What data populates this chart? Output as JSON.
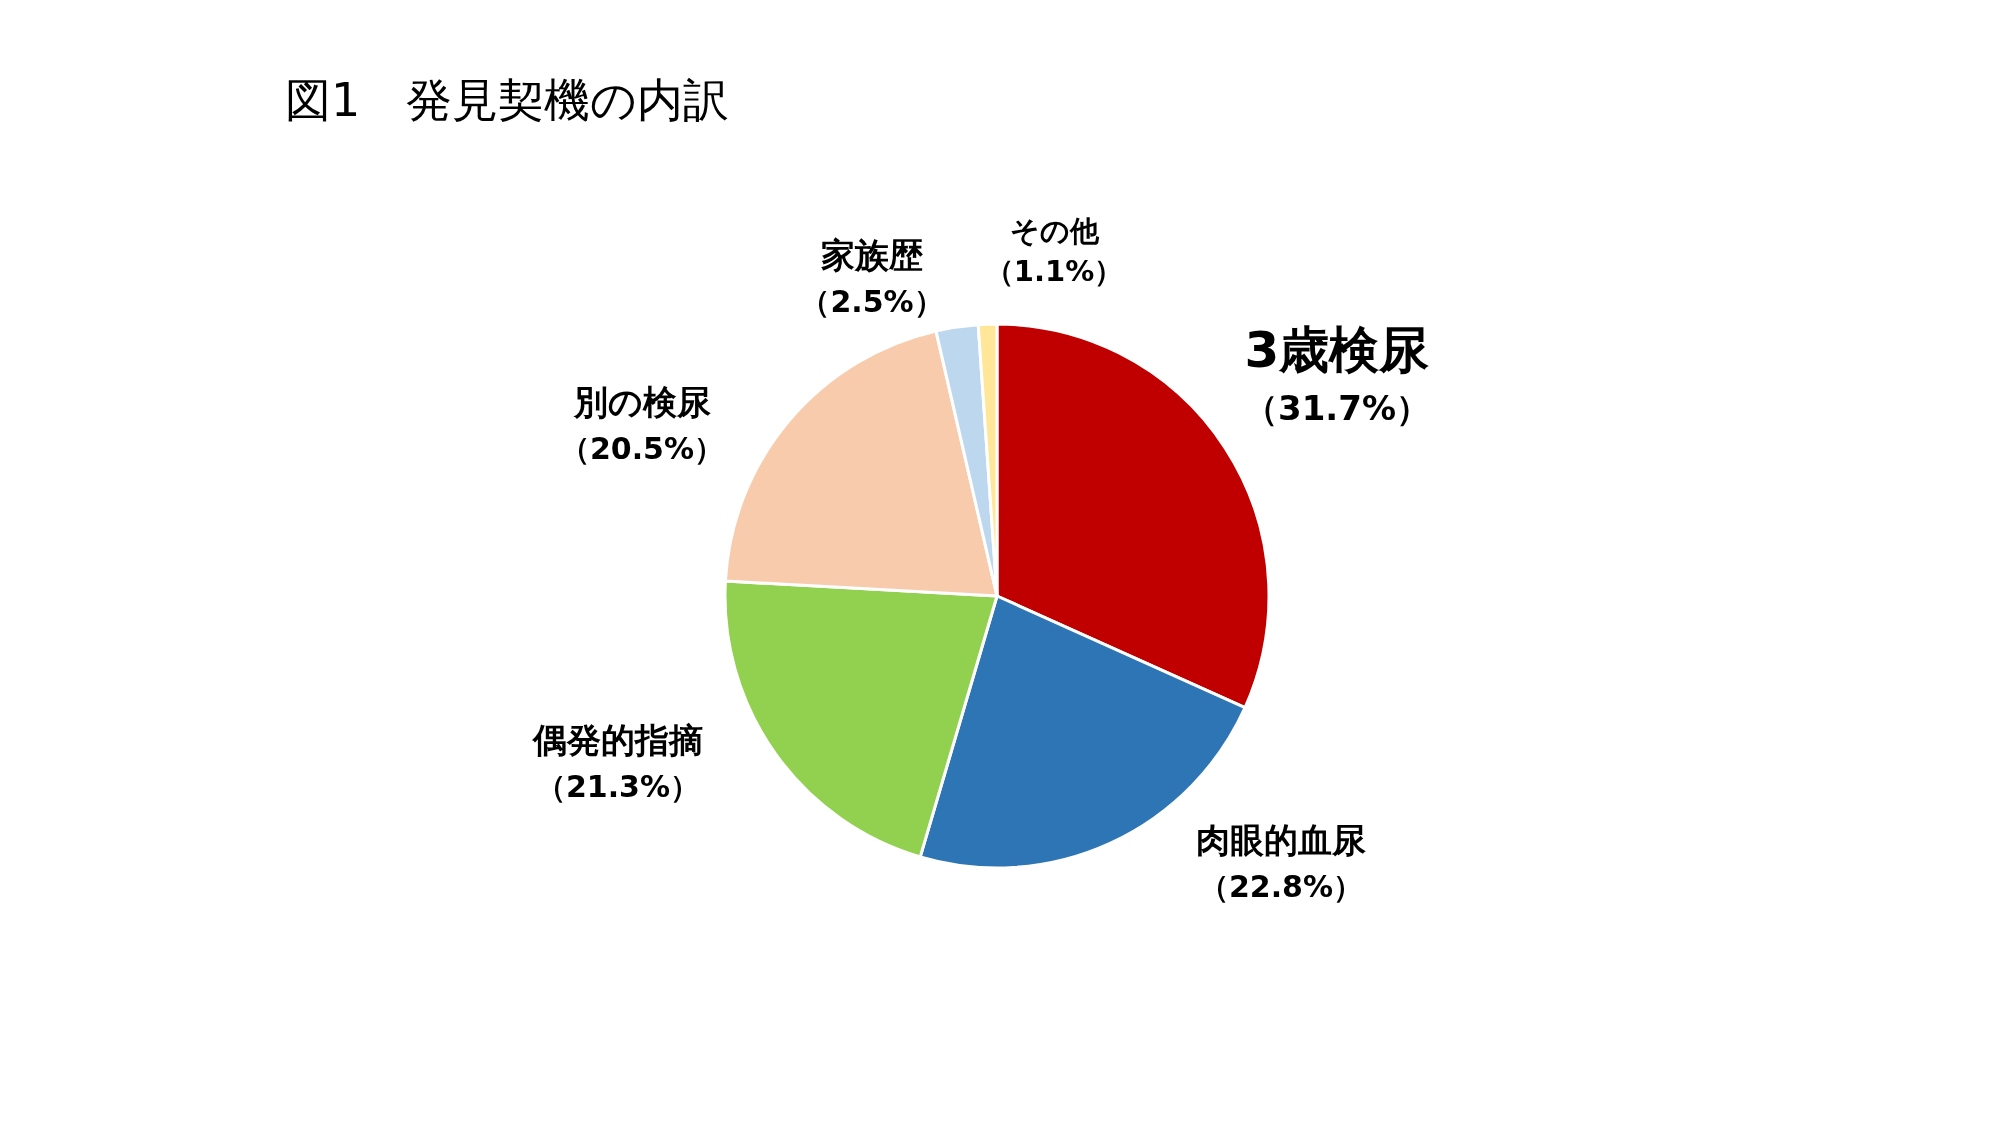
{
  "chart_data": {
    "type": "pie",
    "title": "図1　発見契機の内訳",
    "categories": [
      "3歳検尿",
      "肉眼的血尿",
      "偶発的指摘",
      "別の検尿",
      "家族歴",
      "その他"
    ],
    "values": [
      31.7,
      22.8,
      21.3,
      20.5,
      2.5,
      1.1
    ],
    "value_labels": [
      "（31.7%）",
      "（22.8%）",
      "（21.3%）",
      "（20.5%）",
      "（2.5%）",
      "（1.1%）"
    ],
    "colors": [
      "#c00000",
      "#2e75b6",
      "#92d050",
      "#f8cbad",
      "#bdd7ee",
      "#ffe699"
    ]
  }
}
